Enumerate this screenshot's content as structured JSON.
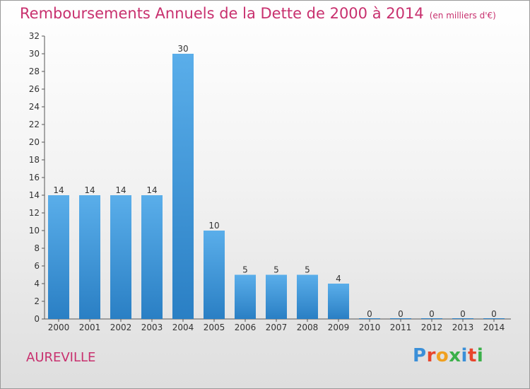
{
  "header": {
    "title": "Remboursements Annuels de la Dette de 2000 à 2014",
    "unit": "(en milliers d'€)"
  },
  "footer": {
    "commune": "AUREVILLE",
    "logo_text": "Proxiti",
    "logo_colors": [
      "#3a8fd8",
      "#e8452c",
      "#f0a020",
      "#3bb04a",
      "#3a8fd8",
      "#e8452c",
      "#3bb04a"
    ]
  },
  "colors": {
    "title": "#c8306e",
    "bar_light": "#5aaeea",
    "bar_dark": "#2a7fc4",
    "axis": "#555555",
    "text": "#333333"
  },
  "chart_data": {
    "type": "bar",
    "categories": [
      "2000",
      "2001",
      "2002",
      "2003",
      "2004",
      "2005",
      "2006",
      "2007",
      "2008",
      "2009",
      "2010",
      "2011",
      "2012",
      "2013",
      "2014"
    ],
    "values": [
      14,
      14,
      14,
      14,
      30,
      10,
      5,
      5,
      5,
      4,
      0,
      0,
      0,
      0,
      0
    ],
    "data_labels": [
      "14",
      "14",
      "14",
      "14",
      "30",
      "10",
      "5",
      "5",
      "5",
      "4",
      "0",
      "0",
      "0",
      "0",
      "0"
    ],
    "ylim": [
      0,
      32
    ],
    "yticks": [
      "0",
      "2",
      "4",
      "6",
      "8",
      "10",
      "12",
      "14",
      "16",
      "18",
      "20",
      "22",
      "24",
      "26",
      "28",
      "30",
      "32"
    ],
    "grid": false,
    "xlabel": "",
    "ylabel": ""
  }
}
